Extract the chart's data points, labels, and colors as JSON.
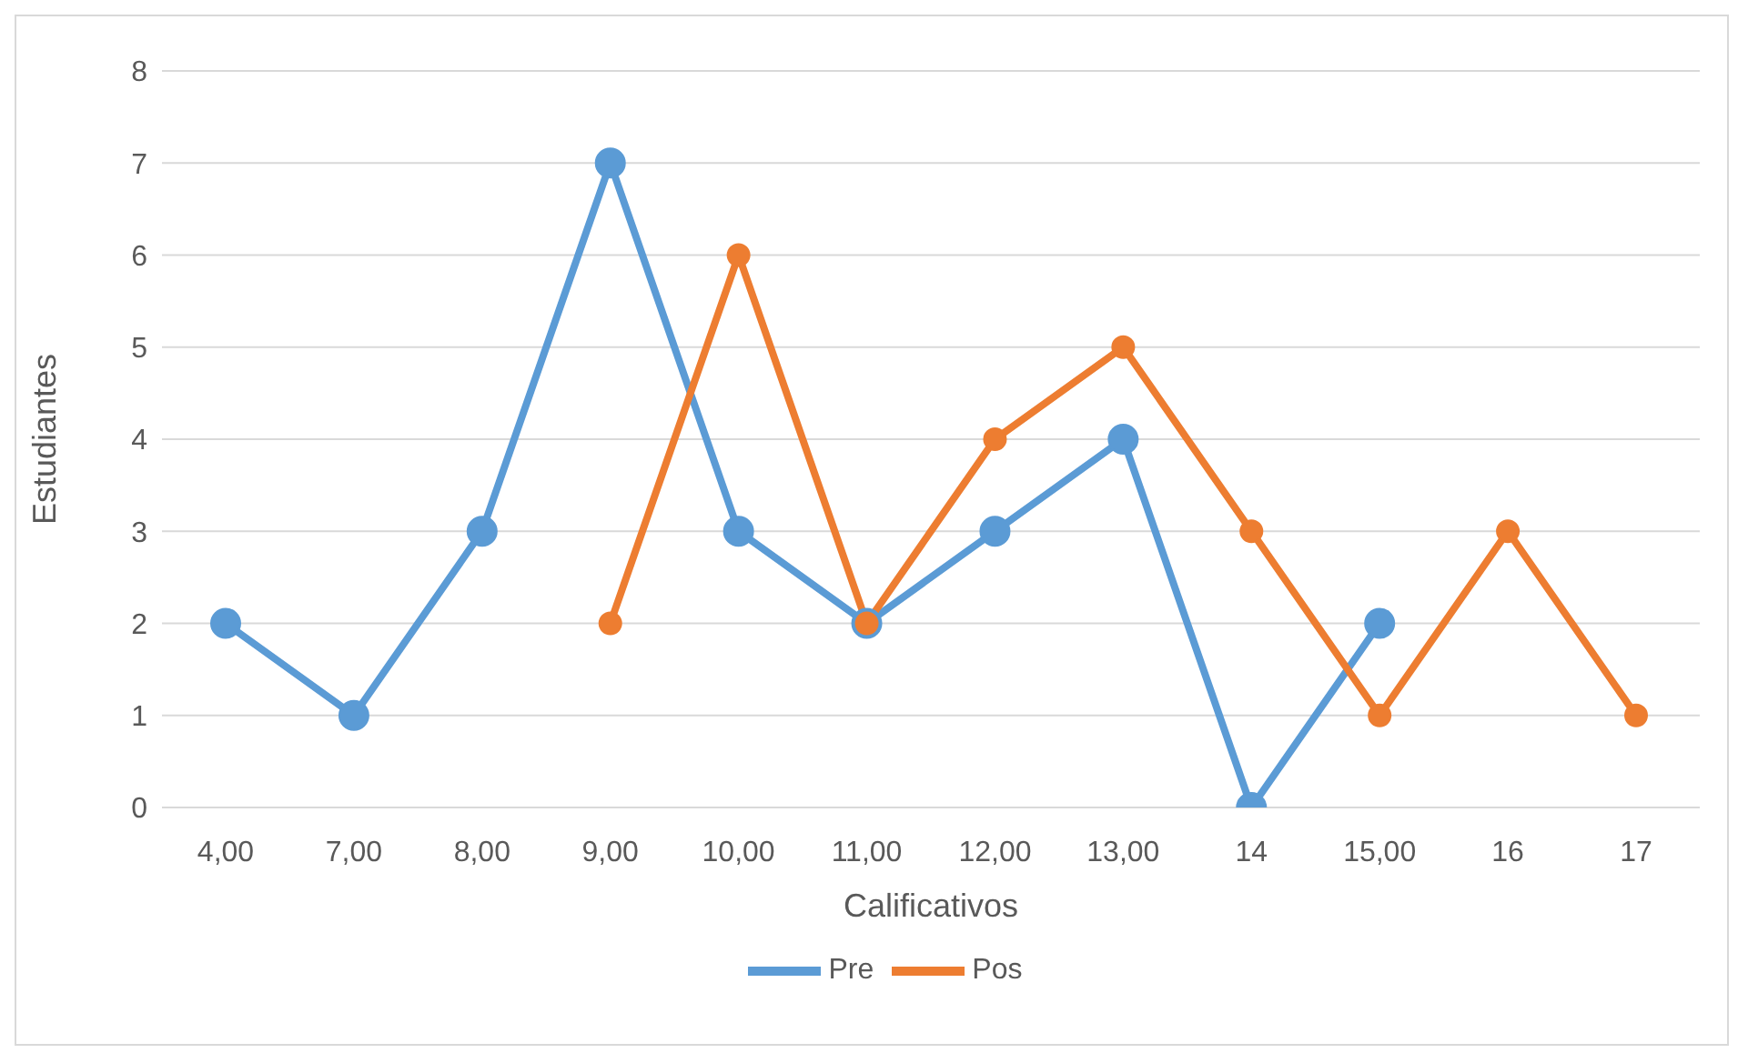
{
  "chart_data": {
    "type": "line",
    "xlabel": "Calificativos",
    "ylabel": "Estudiantes",
    "categories": [
      "4,00",
      "7,00",
      "8,00",
      "9,00",
      "10,00",
      "11,00",
      "12,00",
      "13,00",
      "14",
      "15,00",
      "16",
      "17"
    ],
    "series": [
      {
        "name": "Pre",
        "color": "#5b9bd5",
        "values": [
          2,
          1,
          3,
          7,
          3,
          2,
          3,
          4,
          0,
          2,
          null,
          null
        ]
      },
      {
        "name": "Pos",
        "color": "#ed7d31",
        "values": [
          null,
          null,
          null,
          2,
          6,
          2,
          4,
          5,
          3,
          1,
          3,
          1
        ]
      }
    ],
    "ylim": [
      0,
      8
    ],
    "yticks": [
      0,
      1,
      2,
      3,
      4,
      5,
      6,
      7,
      8
    ],
    "grid": "y",
    "legend": "bottom",
    "marker": "circle",
    "line_style": "solid"
  }
}
